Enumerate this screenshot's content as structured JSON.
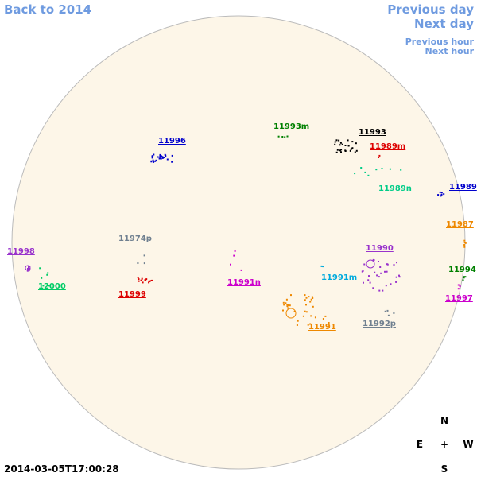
{
  "nav": {
    "back": "Back to 2014",
    "previous_day": "Previous day",
    "next_day": "Next day",
    "previous_hour": "Previous hour",
    "next_hour": "Next hour"
  },
  "timestamp": "2014-03-05T17:00:28",
  "compass": {
    "north": "N",
    "east": "E",
    "center": "+",
    "west": "W",
    "south": "S"
  },
  "regions": [
    {
      "label": "11996",
      "color": "#0000cc"
    },
    {
      "label": "11993m",
      "color": "#008000"
    },
    {
      "label": "11993",
      "color": "#000000"
    },
    {
      "label": "11989m",
      "color": "#dd0000"
    },
    {
      "label": "11989n",
      "color": "#00cc88"
    },
    {
      "label": "11989",
      "color": "#0000cc"
    },
    {
      "label": "11987",
      "color": "#ee8800"
    },
    {
      "label": "11974p",
      "color": "#708090"
    },
    {
      "label": "11998",
      "color": "#9933cc"
    },
    {
      "label": "11990",
      "color": "#9933cc"
    },
    {
      "label": "11994",
      "color": "#008000"
    },
    {
      "label": "11991m",
      "color": "#00aadd"
    },
    {
      "label": "12000",
      "color": "#00cc66"
    },
    {
      "label": "11991n",
      "color": "#cc00cc"
    },
    {
      "label": "11999",
      "color": "#dd0000"
    },
    {
      "label": "11997",
      "color": "#cc00cc"
    },
    {
      "label": "11992p",
      "color": "#708090"
    },
    {
      "label": "11991",
      "color": "#ee8800"
    }
  ]
}
